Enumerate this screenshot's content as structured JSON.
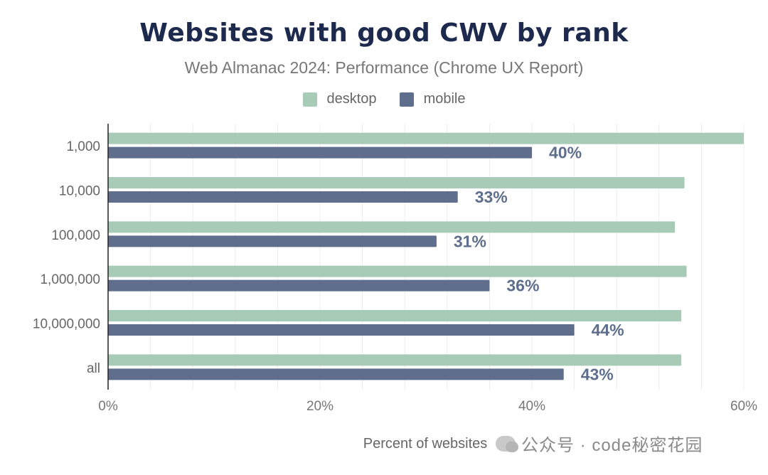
{
  "chart_data": {
    "type": "bar",
    "orientation": "horizontal",
    "title": "Websites with good CWV by rank",
    "subtitle": "Web Almanac 2024: Performance (Chrome UX Report)",
    "xlabel": "Percent of websites",
    "ylabel": "",
    "categories": [
      "1,000",
      "10,000",
      "100,000",
      "1,000,000",
      "10,000,000",
      "all"
    ],
    "xlim": [
      0,
      60
    ],
    "x_ticks": [
      "0%",
      "20%",
      "40%",
      "60%"
    ],
    "grid": true,
    "legend_position": "top",
    "series": [
      {
        "name": "desktop",
        "color": "#a8cbb7",
        "values": [
          60,
          54.4,
          53.5,
          54.6,
          54.1,
          54.1
        ]
      },
      {
        "name": "mobile",
        "color": "#5e6e8c",
        "values": [
          40,
          33,
          31,
          36,
          44,
          43
        ],
        "labels": [
          "40%",
          "33%",
          "31%",
          "36%",
          "44%",
          "43%"
        ]
      }
    ]
  },
  "watermark": "公众号 · code秘密花园"
}
